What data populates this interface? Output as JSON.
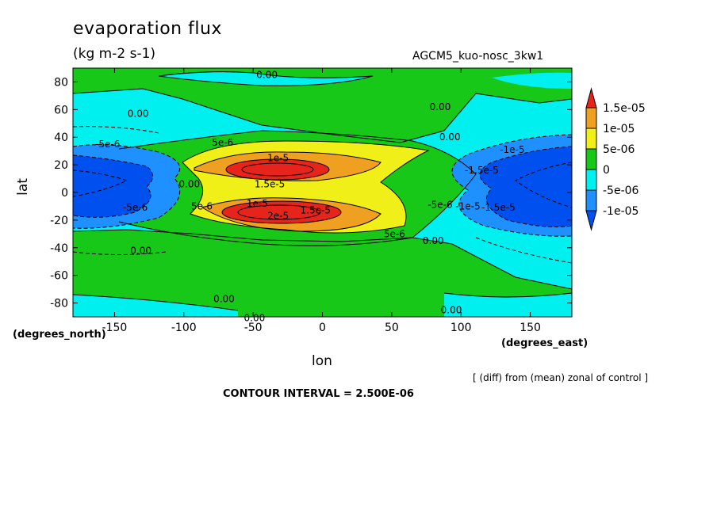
{
  "chart_data": {
    "type": "heatmap",
    "title": "evaporation flux",
    "subtitle": "(kg m-2 s-1)",
    "run_label": "AGCM5_kuo-nosc_3kw1",
    "xlabel": "lon",
    "ylabel": "lat",
    "x_units": "(degrees_east)",
    "y_units": "(degrees_north)",
    "footnote": "[ (diff) from (mean) zonal of control ]",
    "contour_interval": "CONTOUR INTERVAL = 2.500E-06",
    "xlim": [
      -180,
      180
    ],
    "ylim": [
      -90,
      90
    ],
    "x_ticks": [
      -150,
      -100,
      -50,
      0,
      50,
      100,
      150
    ],
    "x_tick_labels": [
      "-150",
      "-100",
      "-50",
      "0",
      "50",
      "100",
      "150"
    ],
    "y_ticks": [
      80,
      60,
      40,
      20,
      0,
      -20,
      -40,
      -60,
      -80
    ],
    "y_tick_labels": [
      "80",
      "60",
      "40",
      "20",
      "0",
      "-20",
      "-40",
      "-60",
      "-80"
    ],
    "colorbar": {
      "labels": [
        "1.5e-05",
        "1e-05",
        "5e-06",
        "0",
        "-5e-06",
        "-1e-05"
      ],
      "colors": [
        "#e6241c",
        "#f0a020",
        "#f0f018",
        "#18c818",
        "#00f0f0",
        "#1e90ff",
        "#0050f0"
      ]
    },
    "contour_labels": [
      {
        "text": "0.00",
        "lon": -40,
        "lat": 85
      },
      {
        "text": "0.00",
        "lon": 85,
        "lat": 62
      },
      {
        "text": "0.00",
        "lon": -133,
        "lat": 57
      },
      {
        "text": "0.00",
        "lon": 92,
        "lat": 40
      },
      {
        "text": "-5e-6",
        "lon": -155,
        "lat": 35
      },
      {
        "text": "5e-6",
        "lon": -72,
        "lat": 36
      },
      {
        "text": "-1e-5",
        "lon": 137,
        "lat": 31
      },
      {
        "text": "1e-5",
        "lon": -32,
        "lat": 25
      },
      {
        "text": "-1.5e-5",
        "lon": 115,
        "lat": 16
      },
      {
        "text": "1.5e-5",
        "lon": -38,
        "lat": 6
      },
      {
        "text": "0.00",
        "lon": -96,
        "lat": 6
      },
      {
        "text": "5e-6",
        "lon": -87,
        "lat": -10
      },
      {
        "text": "1e-5",
        "lon": -47,
        "lat": -8
      },
      {
        "text": "-5e-6",
        "lon": -135,
        "lat": -11
      },
      {
        "text": "-5e-6",
        "lon": 85,
        "lat": -9
      },
      {
        "text": "-1e-5",
        "lon": 105,
        "lat": -10
      },
      {
        "text": "-1.5e-5",
        "lon": 127,
        "lat": -11
      },
      {
        "text": "1.5e-5",
        "lon": -5,
        "lat": -13
      },
      {
        "text": "2e-5",
        "lon": -32,
        "lat": -17
      },
      {
        "text": "5e-6",
        "lon": 52,
        "lat": -30
      },
      {
        "text": "0.00",
        "lon": -131,
        "lat": -42
      },
      {
        "text": "0.00",
        "lon": 80,
        "lat": -35
      },
      {
        "text": "0.00",
        "lon": -71,
        "lat": -77
      },
      {
        "text": "0.00",
        "lon": 93,
        "lat": -85
      },
      {
        "text": "0.00",
        "lon": -49,
        "lat": -91
      }
    ]
  }
}
